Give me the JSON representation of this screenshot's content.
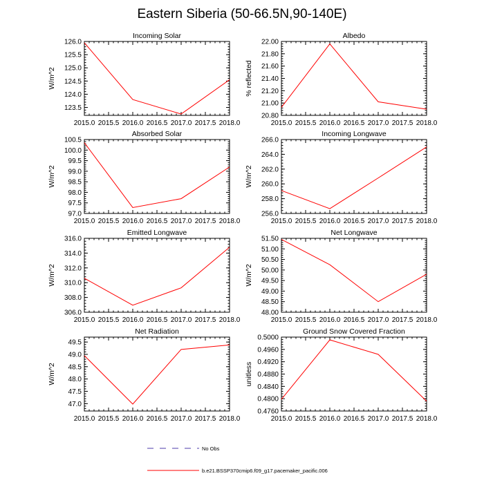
{
  "figure_title": "Eastern Siberia (50-66.5N,90-140E)",
  "colors": {
    "model": "#ff0000",
    "obs": "#4b3aa8",
    "axis": "#000000"
  },
  "legend": {
    "obs_label": "No Obs",
    "model_label": "b.e21.BSSP370cmip6.f09_g17.pacemaker_pacific.006"
  },
  "chart_data": [
    {
      "type": "line",
      "title": "Incoming Solar",
      "ylabel": "W/m^2",
      "xlim": [
        2015.0,
        2018.0
      ],
      "xticks": [
        "2015.0",
        "2015.5",
        "2016.0",
        "2016.5",
        "2017.0",
        "2017.5",
        "2018.0"
      ],
      "ylim": [
        123.2,
        126.0
      ],
      "yticks": [
        "123.5",
        "124.0",
        "124.5",
        "125.0",
        "125.5",
        "126.0"
      ],
      "x": [
        2015,
        2016,
        2017,
        2018
      ],
      "series": [
        {
          "name": "b.e21.BSSP370cmip6.f09_g17.pacemaker_pacific.006",
          "values": [
            125.95,
            123.8,
            123.25,
            124.55
          ]
        }
      ]
    },
    {
      "type": "line",
      "title": "Albedo",
      "ylabel": "% reflected",
      "xlim": [
        2015.0,
        2018.0
      ],
      "xticks": [
        "2015.0",
        "2015.5",
        "2016.0",
        "2016.5",
        "2017.0",
        "2017.5",
        "2018.0"
      ],
      "ylim": [
        20.8,
        22.0
      ],
      "yticks": [
        "20.80",
        "21.00",
        "21.20",
        "21.40",
        "21.60",
        "21.80",
        "22.00"
      ],
      "x": [
        2015,
        2016,
        2017,
        2018
      ],
      "series": [
        {
          "name": "b.e21.BSSP370cmip6.f09_g17.pacemaker_pacific.006",
          "values": [
            20.93,
            21.96,
            21.02,
            20.9
          ]
        }
      ]
    },
    {
      "type": "line",
      "title": "Absorbed Solar",
      "ylabel": "W/m^2",
      "xlim": [
        2015.0,
        2018.0
      ],
      "xticks": [
        "2015.0",
        "2015.5",
        "2016.0",
        "2016.5",
        "2017.0",
        "2017.5",
        "2018.0"
      ],
      "ylim": [
        97.0,
        100.5
      ],
      "yticks": [
        "97.0",
        "97.5",
        "98.0",
        "98.5",
        "99.0",
        "99.5",
        "100.0",
        "100.5"
      ],
      "x": [
        2015,
        2016,
        2017,
        2018
      ],
      "series": [
        {
          "name": "b.e21.BSSP370cmip6.f09_g17.pacemaker_pacific.006",
          "values": [
            100.35,
            97.28,
            97.7,
            99.2
          ]
        }
      ]
    },
    {
      "type": "line",
      "title": "Incoming Longwave",
      "ylabel": "W/m^2",
      "xlim": [
        2015.0,
        2018.0
      ],
      "xticks": [
        "2015.0",
        "2015.5",
        "2016.0",
        "2016.5",
        "2017.0",
        "2017.5",
        "2018.0"
      ],
      "ylim": [
        256.0,
        266.0
      ],
      "yticks": [
        "256.0",
        "258.0",
        "260.0",
        "262.0",
        "264.0",
        "266.0"
      ],
      "x": [
        2015,
        2016,
        2017,
        2018
      ],
      "series": [
        {
          "name": "b.e21.BSSP370cmip6.f09_g17.pacemaker_pacific.006",
          "values": [
            259.1,
            256.65,
            260.8,
            265.0
          ]
        }
      ]
    },
    {
      "type": "line",
      "title": "Emitted Longwave",
      "ylabel": "W/m^2",
      "xlim": [
        2015.0,
        2018.0
      ],
      "xticks": [
        "2015.0",
        "2015.5",
        "2016.0",
        "2016.5",
        "2017.0",
        "2017.5",
        "2018.0"
      ],
      "ylim": [
        306.0,
        316.0
      ],
      "yticks": [
        "306.0",
        "308.0",
        "310.0",
        "312.0",
        "314.0",
        "316.0"
      ],
      "x": [
        2015,
        2016,
        2017,
        2018
      ],
      "series": [
        {
          "name": "b.e21.BSSP370cmip6.f09_g17.pacemaker_pacific.006",
          "values": [
            310.6,
            306.95,
            309.3,
            314.8
          ]
        }
      ]
    },
    {
      "type": "line",
      "title": "Net Longwave",
      "ylabel": "W/m^2",
      "xlim": [
        2015.0,
        2018.0
      ],
      "xticks": [
        "2015.0",
        "2015.5",
        "2016.0",
        "2016.5",
        "2017.0",
        "2017.5",
        "2018.0"
      ],
      "ylim": [
        48.0,
        51.5
      ],
      "yticks": [
        "48.00",
        "48.50",
        "49.00",
        "49.50",
        "50.00",
        "50.50",
        "51.00",
        "51.50"
      ],
      "x": [
        2015,
        2016,
        2017,
        2018
      ],
      "series": [
        {
          "name": "b.e21.BSSP370cmip6.f09_g17.pacemaker_pacific.006",
          "values": [
            51.45,
            50.25,
            48.5,
            49.8
          ]
        }
      ]
    },
    {
      "type": "line",
      "title": "Net Radiation",
      "ylabel": "W/m^2",
      "xlim": [
        2015.0,
        2018.0
      ],
      "xticks": [
        "2015.0",
        "2015.5",
        "2016.0",
        "2016.5",
        "2017.0",
        "2017.5",
        "2018.0"
      ],
      "ylim": [
        46.7,
        49.7
      ],
      "yticks": [
        "47.0",
        "47.5",
        "48.0",
        "48.5",
        "49.0",
        "49.5"
      ],
      "x": [
        2015,
        2016,
        2017,
        2018
      ],
      "series": [
        {
          "name": "b.e21.BSSP370cmip6.f09_g17.pacemaker_pacific.006",
          "values": [
            48.95,
            46.98,
            49.2,
            49.38
          ]
        }
      ]
    },
    {
      "type": "line",
      "title": "Ground Snow Covered Fraction",
      "ylabel": "unitless",
      "xlim": [
        2015.0,
        2018.0
      ],
      "xticks": [
        "2015.0",
        "2015.5",
        "2016.0",
        "2016.5",
        "2017.0",
        "2017.5",
        "2018.0"
      ],
      "ylim": [
        0.476,
        0.5
      ],
      "yticks": [
        "0.4760",
        "0.4800",
        "0.4840",
        "0.4880",
        "0.4920",
        "0.4960",
        "0.5000"
      ],
      "x": [
        2015,
        2016,
        2017,
        2018
      ],
      "series": [
        {
          "name": "b.e21.BSSP370cmip6.f09_g17.pacemaker_pacific.006",
          "values": [
            0.4798,
            0.4991,
            0.4944,
            0.4792
          ]
        }
      ]
    }
  ]
}
